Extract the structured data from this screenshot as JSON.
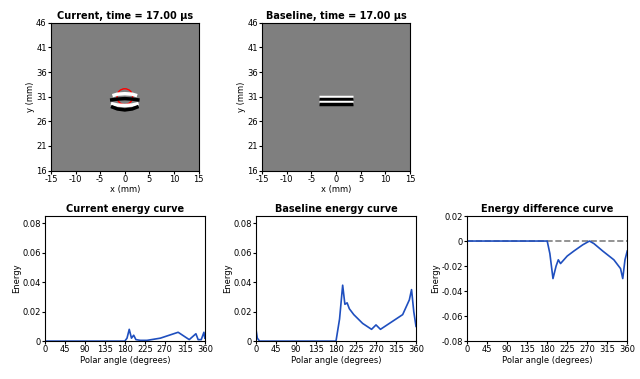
{
  "chart_data": [
    {
      "type": "image",
      "title": "Current, time = 17.00 μs",
      "x_label": "x (mm)",
      "y_label": "y (mm)",
      "xlim": [
        -15,
        15
      ],
      "ylim": [
        16,
        46
      ],
      "xticks": [
        -15,
        -10,
        -5,
        0,
        5,
        10,
        15
      ],
      "yticks": [
        16,
        21,
        26,
        31,
        36,
        41,
        46
      ],
      "background": "#7f7f7f",
      "lines": [
        {
          "color": "#ffffff",
          "x": [
            -2.5,
            -1.5,
            0,
            1.5,
            2.5
          ],
          "y": [
            31.2,
            31.5,
            31.6,
            31.5,
            31.2
          ]
        },
        {
          "color": "#000000",
          "x": [
            -3,
            -1.5,
            0,
            1.5,
            3
          ],
          "y": [
            30.3,
            30.5,
            30.6,
            30.5,
            30.3
          ]
        },
        {
          "color": "#ffffff",
          "x": [
            -2.8,
            -1.5,
            0,
            1.5,
            2.8
          ],
          "y": [
            29.6,
            29.3,
            29.2,
            29.3,
            29.6
          ]
        },
        {
          "color": "#000000",
          "x": [
            -2.8,
            -1.5,
            0,
            1.5,
            2.8
          ],
          "y": [
            29.0,
            28.5,
            28.3,
            28.5,
            29.0
          ]
        }
      ],
      "circle": {
        "x": 0,
        "y": 31,
        "radius": 1.6,
        "color": "#ff0000"
      }
    },
    {
      "type": "image",
      "title": "Baseline, time = 17.00 μs",
      "x_label": "x (mm)",
      "y_label": "y (mm)",
      "xlim": [
        -15,
        15
      ],
      "ylim": [
        16,
        46
      ],
      "xticks": [
        -15,
        -10,
        -5,
        0,
        5,
        10,
        15
      ],
      "yticks": [
        16,
        21,
        26,
        31,
        36,
        41,
        46
      ],
      "background": "#7f7f7f",
      "lines": [
        {
          "color": "#ffffff",
          "x": [
            -3.5,
            3.5
          ],
          "y": [
            31.0,
            31.0
          ]
        },
        {
          "color": "#000000",
          "x": [
            -3.5,
            3.5
          ],
          "y": [
            30.5,
            30.5
          ]
        },
        {
          "color": "#ffffff",
          "x": [
            -3.5,
            3.5
          ],
          "y": [
            30.0,
            30.0
          ]
        },
        {
          "color": "#000000",
          "x": [
            -3.5,
            3.5
          ],
          "y": [
            29.5,
            29.5
          ]
        }
      ]
    },
    {
      "type": "line",
      "title": "Current energy curve",
      "x_label": "Polar angle (degrees)",
      "y_label": "Energy",
      "xlim": [
        0,
        360
      ],
      "ylim": [
        0,
        0.085
      ],
      "xticks": [
        0,
        45,
        90,
        135,
        180,
        225,
        270,
        315,
        360
      ],
      "yticks": [
        0,
        0.02,
        0.04,
        0.06,
        0.08
      ],
      "series": [
        {
          "color": "#1f4fbf",
          "line_style": "solid",
          "x": [
            0,
            90,
            180,
            185,
            190,
            195,
            200,
            205,
            215,
            230,
            260,
            280,
            300,
            315,
            325,
            340,
            345,
            352,
            358,
            360
          ],
          "values": [
            0,
            0,
            0,
            0.002,
            0.008,
            0.002,
            0.004,
            0.001,
            0.0005,
            0.0005,
            0.002,
            0.004,
            0.006,
            0.003,
            0.001,
            0.005,
            0.001,
            0.001,
            0.006,
            0.002
          ]
        }
      ]
    },
    {
      "type": "line",
      "title": "Baseline energy curve",
      "x_label": "Polar angle (degrees)",
      "y_label": "Energy",
      "xlim": [
        0,
        360
      ],
      "ylim": [
        0,
        0.085
      ],
      "xticks": [
        0,
        45,
        90,
        135,
        180,
        225,
        270,
        315,
        360
      ],
      "yticks": [
        0,
        0.02,
        0.04,
        0.06,
        0.08
      ],
      "series": [
        {
          "color": "#1f4fbf",
          "line_style": "solid",
          "x": [
            0,
            3,
            8,
            90,
            180,
            188,
            195,
            200,
            205,
            210,
            220,
            240,
            260,
            270,
            280,
            300,
            330,
            345,
            350,
            355,
            360
          ],
          "values": [
            0.008,
            0.002,
            0,
            0,
            0,
            0.015,
            0.038,
            0.025,
            0.026,
            0.022,
            0.018,
            0.012,
            0.008,
            0.011,
            0.008,
            0.012,
            0.018,
            0.028,
            0.035,
            0.02,
            0.01
          ]
        }
      ]
    },
    {
      "type": "line",
      "title": "Energy difference curve",
      "x_label": "Polar angle (degrees)",
      "y_label": "Energy",
      "xlim": [
        0,
        360
      ],
      "ylim": [
        -0.08,
        0.02
      ],
      "xticks": [
        0,
        45,
        90,
        135,
        180,
        225,
        270,
        315,
        360
      ],
      "yticks": [
        -0.08,
        -0.06,
        -0.04,
        -0.02,
        0,
        0.02
      ],
      "series": [
        {
          "color": "#808080",
          "line_style": "dashed",
          "x": [
            0,
            360
          ],
          "values": [
            0,
            0
          ]
        },
        {
          "color": "#1f4fbf",
          "line_style": "solid",
          "x": [
            0,
            90,
            180,
            186,
            193,
            200,
            205,
            210,
            225,
            240,
            260,
            275,
            285,
            305,
            330,
            345,
            350,
            355,
            360
          ],
          "values": [
            0,
            0,
            0,
            -0.01,
            -0.03,
            -0.02,
            -0.015,
            -0.018,
            -0.012,
            -0.008,
            -0.003,
            0,
            -0.002,
            -0.008,
            -0.015,
            -0.022,
            -0.03,
            -0.015,
            -0.008
          ]
        }
      ]
    }
  ]
}
